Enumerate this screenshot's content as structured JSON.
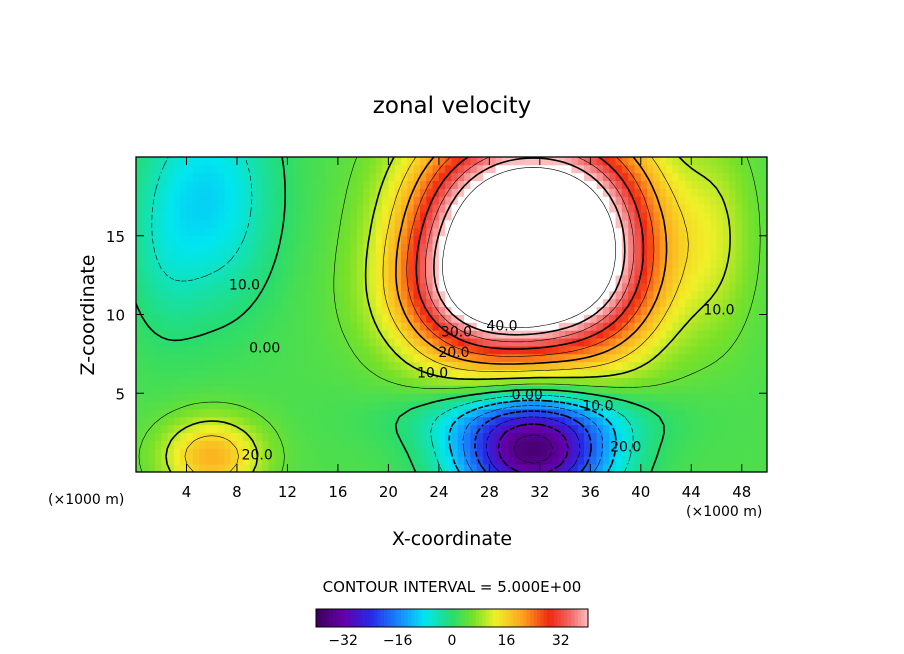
{
  "chart_data": {
    "type": "heatmap",
    "title": "zonal velocity",
    "xlabel": "X-coordinate",
    "ylabel": "Z-coordinate",
    "x_unit": "(×1000 m)",
    "x_unit_right": "(×1000 m)",
    "xlim": [
      0,
      50
    ],
    "ylim": [
      0,
      20
    ],
    "x_ticks": [
      4,
      8,
      12,
      16,
      20,
      24,
      28,
      32,
      36,
      40,
      44,
      48
    ],
    "y_ticks": [
      5,
      10,
      15
    ],
    "x_tick_labels": [
      "4",
      "8",
      "12",
      "16",
      "20",
      "24",
      "28",
      "32",
      "36",
      "40",
      "44",
      "48"
    ],
    "y_tick_labels": [
      "5",
      "10",
      "15"
    ],
    "contour_interval_text": "CONTOUR INTERVAL = 5.000E+00",
    "contour_interval": 5,
    "colorbar": {
      "range": [
        -40,
        40
      ],
      "ticks": [
        -32,
        -16,
        0,
        16,
        32
      ],
      "tick_labels": [
        "−32",
        "−16",
        "0",
        "16",
        "32"
      ]
    },
    "contour_labels": [
      {
        "text": "10.0",
        "x": 8.6,
        "y": 11.6
      },
      {
        "text": "0.00",
        "x": 10.2,
        "y": 7.6
      },
      {
        "text": "40.0",
        "x": 29.0,
        "y": 9.0
      },
      {
        "text": "30.0",
        "x": 25.4,
        "y": 8.6
      },
      {
        "text": "20.0",
        "x": 25.2,
        "y": 7.3
      },
      {
        "text": "10.0",
        "x": 23.5,
        "y": 6.0
      },
      {
        "text": "0.00",
        "x": 31.0,
        "y": 4.6
      },
      {
        "text": "10.0",
        "x": 36.6,
        "y": 3.9
      },
      {
        "text": "20.0",
        "x": 38.8,
        "y": 1.3
      },
      {
        "text": "10.0",
        "x": 46.2,
        "y": 10.0
      },
      {
        "text": "20.0",
        "x": 9.6,
        "y": 0.8
      }
    ],
    "features": [
      {
        "x": 31.5,
        "z": 16.0,
        "value": 45,
        "sx": 7.5,
        "sz": 6.0
      },
      {
        "x": 30.0,
        "z": 11.0,
        "value": 25,
        "sx": 8.0,
        "sz": 4.0
      },
      {
        "x": 26.0,
        "z": 14.0,
        "value": 18,
        "sx": 6.0,
        "sz": 7.0
      },
      {
        "x": 37.0,
        "z": 14.0,
        "value": 18,
        "sx": 6.0,
        "sz": 7.0
      },
      {
        "x": 31.5,
        "z": 1.0,
        "value": -38,
        "sx": 6.0,
        "sz": 3.0
      },
      {
        "x": 31.0,
        "z": 3.5,
        "value": -12,
        "sx": 9.0,
        "sz": 2.0
      },
      {
        "x": 6.0,
        "z": 17.5,
        "value": -12,
        "sx": 5.0,
        "sz": 7.0
      },
      {
        "x": 6.0,
        "z": 1.0,
        "value": 16,
        "sx": 4.0,
        "sz": 2.5
      },
      {
        "x": 46.0,
        "z": 15.0,
        "value": 6,
        "sx": 3.0,
        "sz": 6.0
      },
      {
        "x": 2.0,
        "z": 14.0,
        "value": -4,
        "sx": 3.0,
        "sz": 6.0
      }
    ],
    "background_value": 3
  }
}
